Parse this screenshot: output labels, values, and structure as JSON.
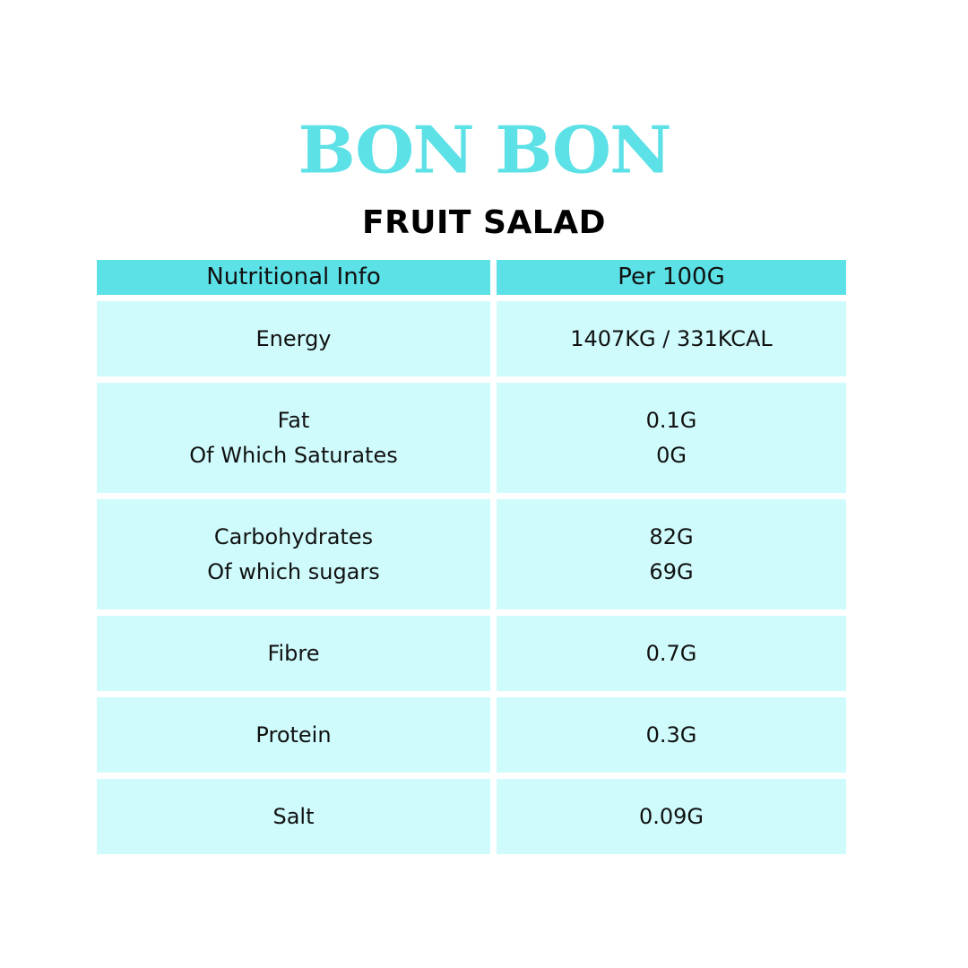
{
  "brand": {
    "logo": "BON BON",
    "subtitle": "FRUIT SALAD",
    "color": "#5ce1e6"
  },
  "table": {
    "headers": [
      "Nutritional Info",
      "Per 100G"
    ],
    "rows": [
      {
        "label": [
          "Energy"
        ],
        "value": [
          "1407KG / 331KCAL"
        ]
      },
      {
        "label": [
          "Fat",
          "Of Which Saturates"
        ],
        "value": [
          "0.1G",
          "0G"
        ]
      },
      {
        "label": [
          "Carbohydrates",
          "Of which sugars"
        ],
        "value": [
          "82G",
          "69G"
        ]
      },
      {
        "label": [
          "Fibre"
        ],
        "value": [
          "0.7G"
        ]
      },
      {
        "label": [
          "Protein"
        ],
        "value": [
          "0.3G"
        ]
      },
      {
        "label": [
          "Salt"
        ],
        "value": [
          "0.09G"
        ]
      }
    ],
    "header_color": "#5ce1e6",
    "row_color": "#cffbfc"
  }
}
